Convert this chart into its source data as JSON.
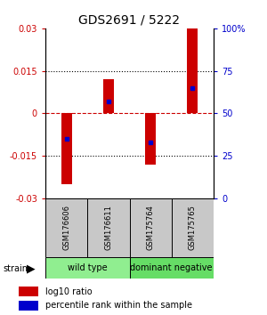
{
  "title": "GDS2691 / 5222",
  "samples": [
    "GSM176606",
    "GSM176611",
    "GSM175764",
    "GSM175765"
  ],
  "log10_ratio": [
    -0.025,
    0.012,
    -0.018,
    0.03
  ],
  "percentile_rank": [
    35,
    57,
    33,
    65
  ],
  "ylim": [
    -0.03,
    0.03
  ],
  "yticks_left": [
    -0.03,
    -0.015,
    0,
    0.015,
    0.03
  ],
  "yticks_right": [
    0,
    25,
    50,
    75,
    100
  ],
  "groups": [
    {
      "label": "wild type",
      "samples": [
        0,
        1
      ],
      "color": "#90EE90"
    },
    {
      "label": "dominant negative",
      "samples": [
        2,
        3
      ],
      "color": "#66DD66"
    }
  ],
  "bar_color": "#CC0000",
  "dot_color": "#0000CC",
  "left_axis_color": "#CC0000",
  "right_axis_color": "#0000CC",
  "sample_box_color": "#C8C8C8",
  "zero_line_color": "#CC0000",
  "bar_width": 0.25,
  "title_fontsize": 10,
  "tick_fontsize": 7,
  "sample_fontsize": 6,
  "group_fontsize": 7,
  "legend_fontsize": 7
}
